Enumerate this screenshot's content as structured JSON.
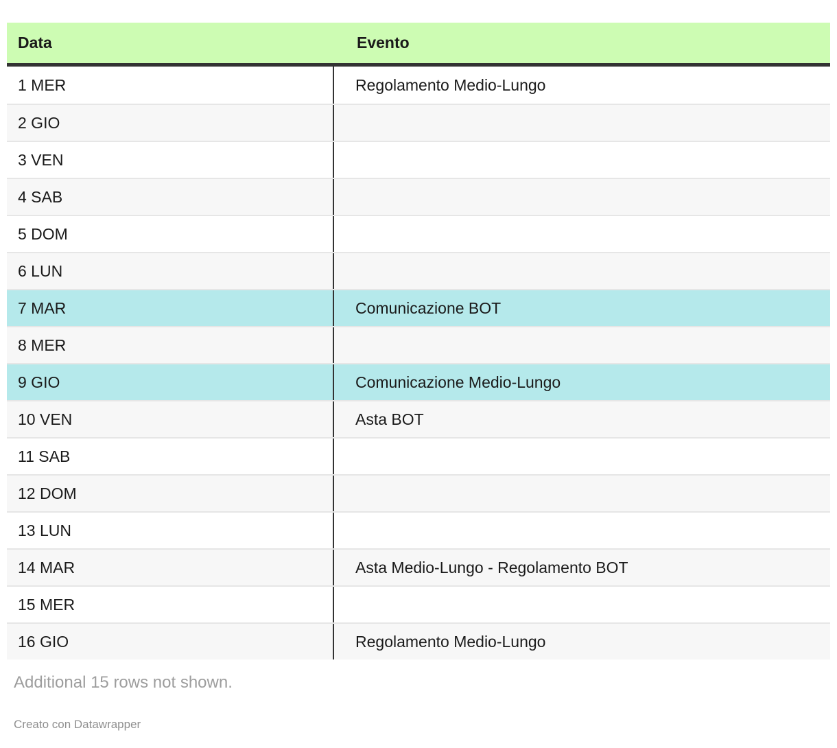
{
  "chart_data": {
    "type": "table",
    "columns": [
      "Data",
      "Evento"
    ],
    "rows": [
      {
        "data": "1 MER",
        "evento": "Regolamento Medio-Lungo",
        "highlight": false
      },
      {
        "data": "2 GIO",
        "evento": "",
        "highlight": false
      },
      {
        "data": "3 VEN",
        "evento": "",
        "highlight": false
      },
      {
        "data": "4 SAB",
        "evento": "",
        "highlight": false
      },
      {
        "data": "5 DOM",
        "evento": "",
        "highlight": false
      },
      {
        "data": "6 LUN",
        "evento": "",
        "highlight": false
      },
      {
        "data": "7 MAR",
        "evento": "Comunicazione BOT",
        "highlight": true
      },
      {
        "data": "8 MER",
        "evento": "",
        "highlight": false
      },
      {
        "data": "9 GIO",
        "evento": "Comunicazione Medio-Lungo",
        "highlight": true
      },
      {
        "data": "10 VEN",
        "evento": "Asta BOT",
        "highlight": false
      },
      {
        "data": "11 SAB",
        "evento": "",
        "highlight": false
      },
      {
        "data": "12 DOM",
        "evento": "",
        "highlight": false
      },
      {
        "data": "13 LUN",
        "evento": "",
        "highlight": false
      },
      {
        "data": "14 MAR",
        "evento": "Asta Medio-Lungo - Regolamento BOT",
        "highlight": false
      },
      {
        "data": "15 MER",
        "evento": "",
        "highlight": false
      },
      {
        "data": "16 GIO",
        "evento": "Regolamento Medio-Lungo",
        "highlight": false
      }
    ],
    "note": "Additional 15 rows not shown.",
    "credit": "Creato con Datawrapper"
  },
  "colors": {
    "header_bg": "#cdfcb3",
    "highlight_bg": "#b5e9eb",
    "stripe_bg": "#f7f7f7",
    "separator": "#e6e6e6",
    "border_dark": "#333333",
    "text": "#1a1a1a",
    "note_text": "#9d9d9d",
    "credit_text": "#8f8f8f"
  }
}
